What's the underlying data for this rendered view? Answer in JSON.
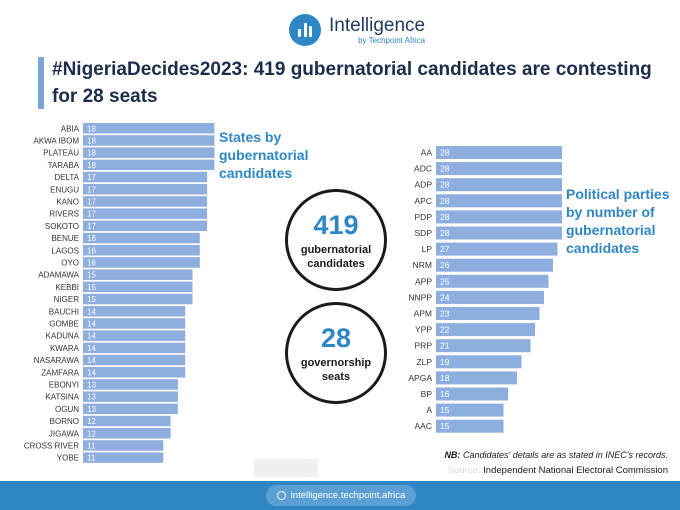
{
  "header": {
    "brand": "Intelligence",
    "brand_sub": "by Techpoint Africa"
  },
  "title": "#NigeriaDecides2023: 419 gubernatorial candidates are contesting for 28 seats",
  "stats": [
    {
      "number": "419",
      "label": "gubernatorial candidates"
    },
    {
      "number": "28",
      "label": "governorship seats"
    }
  ],
  "colors": {
    "bar": "#8eaedf",
    "accent": "#2f86c5",
    "title": "#1b2d4a"
  },
  "chart_data": [
    {
      "type": "bar",
      "orientation": "horizontal",
      "title": "States by gubernatorial candidates",
      "categories": [
        "ABIA",
        "AKWA IBOM",
        "PLATEAU",
        "TARABA",
        "DELTA",
        "ENUGU",
        "KANO",
        "RIVERS",
        "SOKOTO",
        "BENUE",
        "LAGOS",
        "OYO",
        "ADAMAWA",
        "KEBBI",
        "NIGER",
        "BAUCHI",
        "GOMBE",
        "KADUNA",
        "KWARA",
        "NASARAWA",
        "ZAMFARA",
        "EBONYI",
        "KATSINA",
        "OGUN",
        "BORNO",
        "JIGAWA",
        "CROSS RIVER",
        "YOBE"
      ],
      "values": [
        18,
        18,
        18,
        18,
        17,
        17,
        17,
        17,
        17,
        16,
        16,
        16,
        15,
        15,
        15,
        14,
        14,
        14,
        14,
        14,
        14,
        13,
        13,
        13,
        12,
        12,
        11,
        11
      ]
    },
    {
      "type": "bar",
      "orientation": "horizontal",
      "title": "Political parties by number of gubernatorial candidates",
      "categories": [
        "AA",
        "ADC",
        "ADP",
        "APC",
        "PDP",
        "SDP",
        "LP",
        "NRM",
        "APP",
        "NNPP",
        "APM",
        "YPP",
        "PRP",
        "ZLP",
        "APGA",
        "BP",
        "A",
        "AAC"
      ],
      "values": [
        28,
        28,
        28,
        28,
        28,
        28,
        27,
        26,
        25,
        24,
        23,
        22,
        21,
        19,
        18,
        16,
        15,
        15
      ]
    }
  ],
  "footnote": {
    "nb_label": "NB:",
    "text": "Candidates' details are as stated in INEC's records."
  },
  "source": {
    "label": "Source:",
    "text": "Independent National Electoral Commission"
  },
  "footer": {
    "url": "intelligence.techpoint.africa"
  }
}
